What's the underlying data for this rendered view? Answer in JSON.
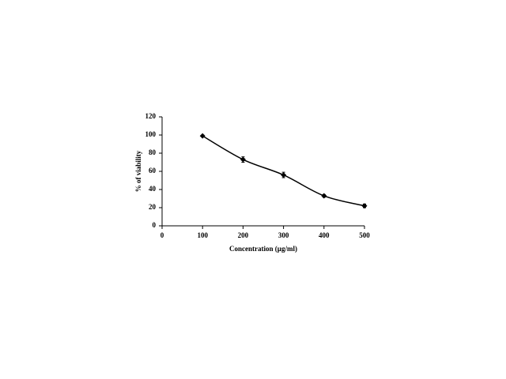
{
  "chart_data": {
    "type": "line",
    "xlabel": "Concentration (µg/ml)",
    "ylabel": "% of viability",
    "x": [
      100,
      200,
      300,
      400,
      500
    ],
    "values": [
      99,
      73,
      56,
      33,
      22
    ],
    "errors": [
      1,
      3,
      3,
      1.5,
      2
    ],
    "color": "#000000",
    "xlim": [
      0,
      500
    ],
    "xticks": [
      0,
      100,
      200,
      300,
      400,
      500
    ],
    "ylim": [
      0,
      120
    ],
    "yticks": [
      0,
      20,
      40,
      60,
      80,
      100,
      120
    ],
    "grid": false
  }
}
